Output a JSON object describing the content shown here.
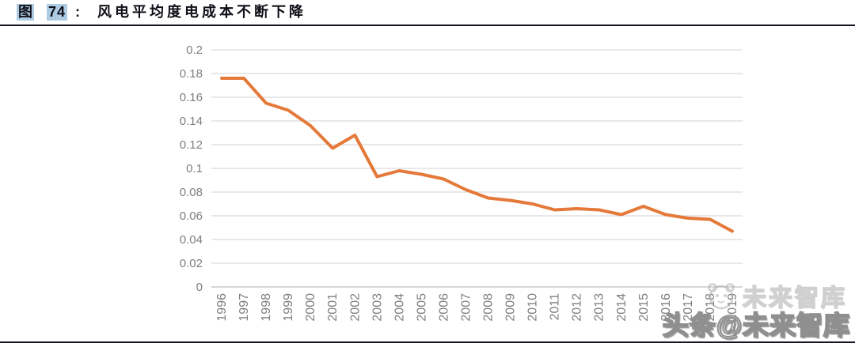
{
  "header": {
    "figure_prefix": "图",
    "figure_number": "74",
    "separator": ":",
    "title": "风电平均度电成本不断下降"
  },
  "watermark": {
    "faint_text": "未来智库",
    "main_text": "头条@未来智库"
  },
  "colors": {
    "line": "#E4793A",
    "gridline": "#D9D9D9",
    "axis_line": "#BFBFBF",
    "tick_label": "#7F7F7F",
    "title_highlight": "#AECBE4",
    "rule": "#15151F"
  },
  "chart_data": {
    "type": "line",
    "title": "风电平均度电成本不断下降",
    "categories": [
      "1996",
      "1997",
      "1998",
      "1999",
      "2000",
      "2001",
      "2002",
      "2003",
      "2004",
      "2005",
      "2006",
      "2007",
      "2008",
      "2009",
      "2010",
      "2011",
      "2012",
      "2013",
      "2014",
      "2015",
      "2016",
      "2017",
      "2018",
      "2019"
    ],
    "values": [
      0.176,
      0.176,
      0.155,
      0.149,
      0.136,
      0.117,
      0.128,
      0.093,
      0.098,
      0.095,
      0.091,
      0.082,
      0.075,
      0.073,
      0.07,
      0.065,
      0.066,
      0.065,
      0.061,
      0.068,
      0.061,
      0.058,
      0.057,
      0.047
    ],
    "y_tick_labels": [
      "0",
      "0.02",
      "0.04",
      "0.06",
      "0.08",
      "0.1",
      "0.12",
      "0.14",
      "0.16",
      "0.18",
      "0.2"
    ],
    "ylim": [
      0,
      0.2
    ],
    "xlabel": "",
    "ylabel": "",
    "grid": "horizontal",
    "legend": "none",
    "line_color": "#E4793A"
  }
}
